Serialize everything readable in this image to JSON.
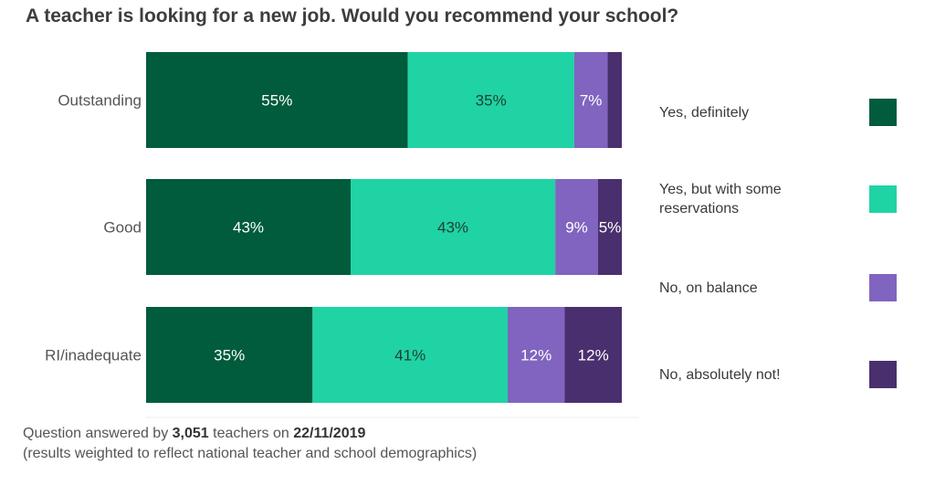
{
  "title": "A teacher is looking for a new job. Would you recommend your school?",
  "chart_data": {
    "type": "bar",
    "orientation": "horizontal",
    "stacked": true,
    "categories": [
      "Outstanding",
      "Good",
      "RI/inadequate"
    ],
    "series": [
      {
        "name": "Yes, definitely",
        "color": "#005c3c",
        "values": [
          55,
          43,
          35
        ],
        "labels": [
          "55%",
          "43%",
          "35%"
        ]
      },
      {
        "name": "Yes, but with some reservations",
        "color": "#1fd3a4",
        "values": [
          35,
          43,
          41
        ],
        "labels": [
          "35%",
          "43%",
          "41%"
        ]
      },
      {
        "name": "No, on balance",
        "color": "#8064c0",
        "values": [
          7,
          9,
          12
        ],
        "labels": [
          "7%",
          "9%",
          "12%"
        ]
      },
      {
        "name": "No, absolutely not!",
        "color": "#4a2f6e",
        "values": [
          3,
          5,
          12
        ],
        "labels": [
          "",
          "5%",
          "12%"
        ]
      }
    ],
    "xlim": [
      0,
      100
    ],
    "legend_position": "right"
  },
  "legend": {
    "items": [
      {
        "label_lines": [
          "Yes, definitely"
        ],
        "color": "#005c3c"
      },
      {
        "label_lines": [
          "Yes, but with some",
          "reservations"
        ],
        "color": "#1fd3a4"
      },
      {
        "label_lines": [
          "No, on balance"
        ],
        "color": "#8064c0"
      },
      {
        "label_lines": [
          "No, absolutely not!"
        ],
        "color": "#4a2f6e"
      }
    ]
  },
  "footer": {
    "line1_prefix": "Question answered by ",
    "respondents": "3,051",
    "line1_middle": " teachers on ",
    "date": "22/11/2019",
    "line2": "(results weighted to reflect national teacher and school demographics)"
  }
}
